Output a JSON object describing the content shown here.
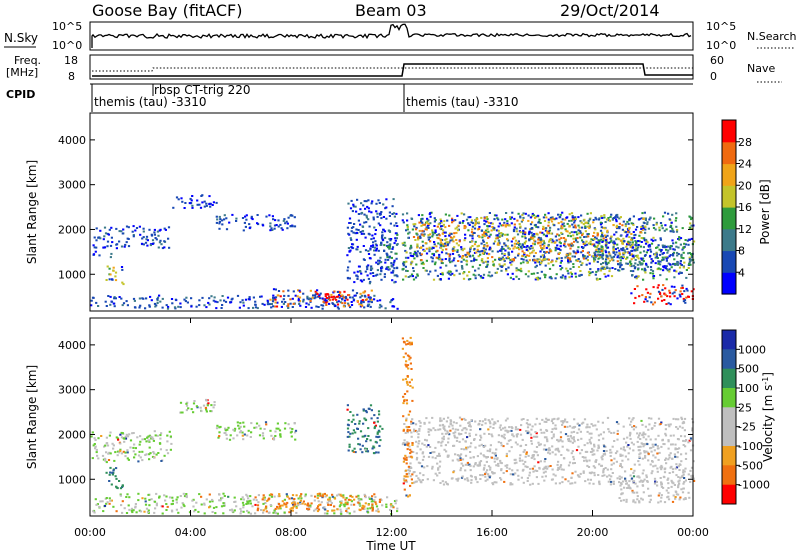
{
  "header": {
    "station": "Goose Bay (fitACF)",
    "beam": "Beam 03",
    "date": "29/Oct/2014"
  },
  "strip_labels": {
    "nsky": "N.Sky",
    "freq_top": "Freq.",
    "freq_unit": "[MHz]",
    "cpid": "CPID",
    "nsearch": "N.Search",
    "nave": "Nave",
    "nsky_top_tick": "10^5",
    "nsky_bottom_tick": "10^0",
    "nsearch_top_tick": "10^5",
    "nsearch_bottom_tick": "10^0",
    "freq_ticks": [
      "18",
      "8"
    ],
    "nave_ticks": [
      "60",
      "0"
    ]
  },
  "cpid_segments": [
    {
      "label": "themis (tau) -3310",
      "start_hour": 0.0
    },
    {
      "label": "rbsp CT-trig 220",
      "start_hour": 2.3
    },
    {
      "label": "themis (tau) -3310",
      "start_hour": 12.4
    }
  ],
  "colors": {
    "power": [
      "#0000ff",
      "#1848b4",
      "#3c7a8a",
      "#2e9b3c",
      "#c4c42a",
      "#f0a418",
      "#f06a10",
      "#ff0000"
    ],
    "velocity": [
      "#1a2aa8",
      "#2a5aa0",
      "#2f8f5a",
      "#66cc33",
      "#bfbfbf",
      "#f0a020",
      "#f07010",
      "#ff0000"
    ]
  },
  "chart_data": [
    {
      "type": "heatmap",
      "title": "",
      "ylabel": "Slant Range [km]",
      "xlabel": "",
      "x_range": [
        0,
        24
      ],
      "ylim": [
        180,
        4600
      ],
      "y_ticks": [
        1000,
        2000,
        3000,
        4000
      ],
      "colorbar_label": "Power [dB]",
      "colorbar_ticks": [
        "4",
        "8",
        "12",
        "16",
        "20",
        "24",
        "28"
      ],
      "colorbar_range": [
        0,
        32
      ],
      "features": [
        {
          "x": [
            0.1,
            0.9
          ],
          "y": [
            1400,
            2100
          ],
          "level": 6
        },
        {
          "x": [
            0.6,
            1.3
          ],
          "y": [
            800,
            1200
          ],
          "level": 18
        },
        {
          "x": [
            1.0,
            3.2
          ],
          "y": [
            1600,
            2100
          ],
          "level": 6
        },
        {
          "x": [
            3.2,
            5.0
          ],
          "y": [
            2500,
            2800
          ],
          "level": 4
        },
        {
          "x": [
            5.0,
            8.2
          ],
          "y": [
            2000,
            2350
          ],
          "level": 6
        },
        {
          "x": [
            0.0,
            12.2
          ],
          "y": [
            250,
            550
          ],
          "level": 6
        },
        {
          "x": [
            7.0,
            11.2
          ],
          "y": [
            300,
            700
          ],
          "level": 26
        },
        {
          "x": [
            9.0,
            10.0
          ],
          "y": [
            350,
            600
          ],
          "level": 30
        },
        {
          "x": [
            10.2,
            12.2
          ],
          "y": [
            800,
            2700
          ],
          "level": 6
        },
        {
          "x": [
            11.5,
            12.2
          ],
          "y": [
            1000,
            2000
          ],
          "level": 10
        },
        {
          "x": [
            12.4,
            24.0
          ],
          "y": [
            900,
            2400
          ],
          "level": 14
        },
        {
          "x": [
            12.8,
            22.0
          ],
          "y": [
            1300,
            2300
          ],
          "level": 22
        },
        {
          "x": [
            20.0,
            24.0
          ],
          "y": [
            1100,
            1800
          ],
          "level": 12
        },
        {
          "x": [
            21.5,
            24.0
          ],
          "y": [
            350,
            800
          ],
          "level": 30
        }
      ]
    },
    {
      "type": "heatmap",
      "title": "",
      "ylabel": "Slant Range [km]",
      "xlabel": "Time UT",
      "x_range": [
        0,
        24
      ],
      "ylim": [
        180,
        4600
      ],
      "y_ticks": [
        1000,
        2000,
        3000,
        4000
      ],
      "x_tick_labels": [
        "00:00",
        "04:00",
        "08:00",
        "12:00",
        "16:00",
        "20:00",
        "00:00"
      ],
      "x_ticks": [
        0,
        4,
        8,
        12,
        16,
        20,
        24
      ],
      "colorbar_label": "Velocity [m s^-1]",
      "colorbar_ticks": [
        "1000",
        "500",
        "100",
        "25",
        "-25",
        "-100",
        "-500",
        "-1000"
      ],
      "features": [
        {
          "x": [
            0.0,
            3.2
          ],
          "y": [
            1400,
            2100
          ],
          "level": 25
        },
        {
          "x": [
            3.2,
            5.0
          ],
          "y": [
            2500,
            2800
          ],
          "level": 25
        },
        {
          "x": [
            5.0,
            8.2
          ],
          "y": [
            1900,
            2300
          ],
          "level": 25
        },
        {
          "x": [
            0.6,
            1.3
          ],
          "y": [
            800,
            1300
          ],
          "level": 100
        },
        {
          "x": [
            0.0,
            12.2
          ],
          "y": [
            250,
            700
          ],
          "level": 25
        },
        {
          "x": [
            6.5,
            11.5
          ],
          "y": [
            300,
            700
          ],
          "level": -100
        },
        {
          "x": [
            10.2,
            11.6
          ],
          "y": [
            1600,
            2700
          ],
          "level": 100
        },
        {
          "x": [
            12.4,
            24.0
          ],
          "y": [
            900,
            2400
          ],
          "level": 0
        },
        {
          "x": [
            12.4,
            12.8
          ],
          "y": [
            500,
            4200
          ],
          "level": -100
        },
        {
          "x": [
            21.0,
            24.0
          ],
          "y": [
            500,
            1100
          ],
          "level": 0
        }
      ]
    }
  ]
}
